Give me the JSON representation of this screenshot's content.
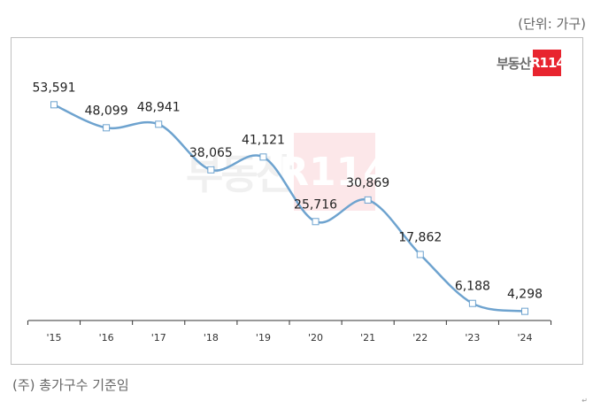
{
  "unit_label": "(단위: 가구)",
  "footnote": "(주) 총가구수 기준임",
  "corner_mark": "↵",
  "brand": {
    "text": "부동산",
    "box": "R114"
  },
  "colors": {
    "line": "#6ea3cf",
    "marker_fill": "#ffffff",
    "brand_red": "#e8242f",
    "axis": "#333333"
  },
  "chart_data": {
    "type": "line",
    "title": "",
    "xlabel": "",
    "ylabel": "",
    "categories": [
      "'15",
      "'16",
      "'17",
      "'18",
      "'19",
      "'20",
      "'21",
      "'22",
      "'23",
      "'24"
    ],
    "series": [
      {
        "values": [
          53591,
          48099,
          48941,
          38065,
          41121,
          25716,
          30869,
          17862,
          6188,
          4298
        ],
        "labels": [
          "53,591",
          "48,099",
          "48,941",
          "38,065",
          "41,121",
          "25,716",
          "30,869",
          "17,862",
          "6,188",
          "4,298"
        ]
      }
    ],
    "ylim": [
      0,
      60000
    ],
    "grid": false,
    "legend": "none",
    "smooth": true,
    "marker": "square"
  }
}
